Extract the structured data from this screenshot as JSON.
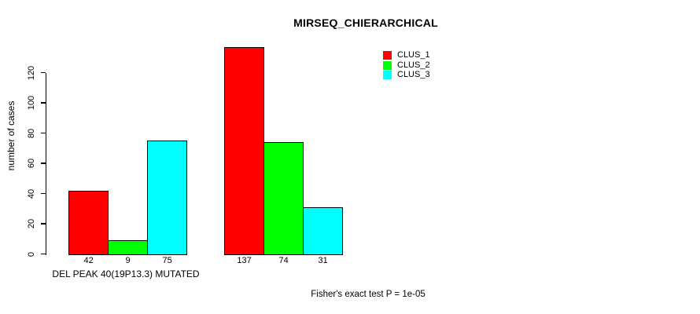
{
  "figure": {
    "background": "#FFFFFF",
    "text_color": "#000000",
    "axis_color": "#000000",
    "bar_border_color": "#000000"
  },
  "chart_data": {
    "type": "bar",
    "title": "MIRSEQ_CHIERARCHICAL",
    "ylabel": "number of cases",
    "xlabel": "DEL PEAK 40(19P13.3) MUTATED",
    "footnote": "Fisher's exact test P = 1e-05",
    "ylim": [
      0,
      120
    ],
    "yticks": [
      0,
      20,
      40,
      60,
      80,
      100,
      120
    ],
    "categories": [
      "DEL PEAK 40(19P13.3) MUTATED",
      ""
    ],
    "series": [
      {
        "name": "CLUS_1",
        "color": "#FF0000",
        "values": [
          42,
          137
        ]
      },
      {
        "name": "CLUS_2",
        "color": "#00FF00",
        "values": [
          9,
          74
        ]
      },
      {
        "name": "CLUS_3",
        "color": "#00FFFF",
        "values": [
          75,
          31
        ]
      }
    ],
    "legend_position": "top-right",
    "grid": false
  }
}
